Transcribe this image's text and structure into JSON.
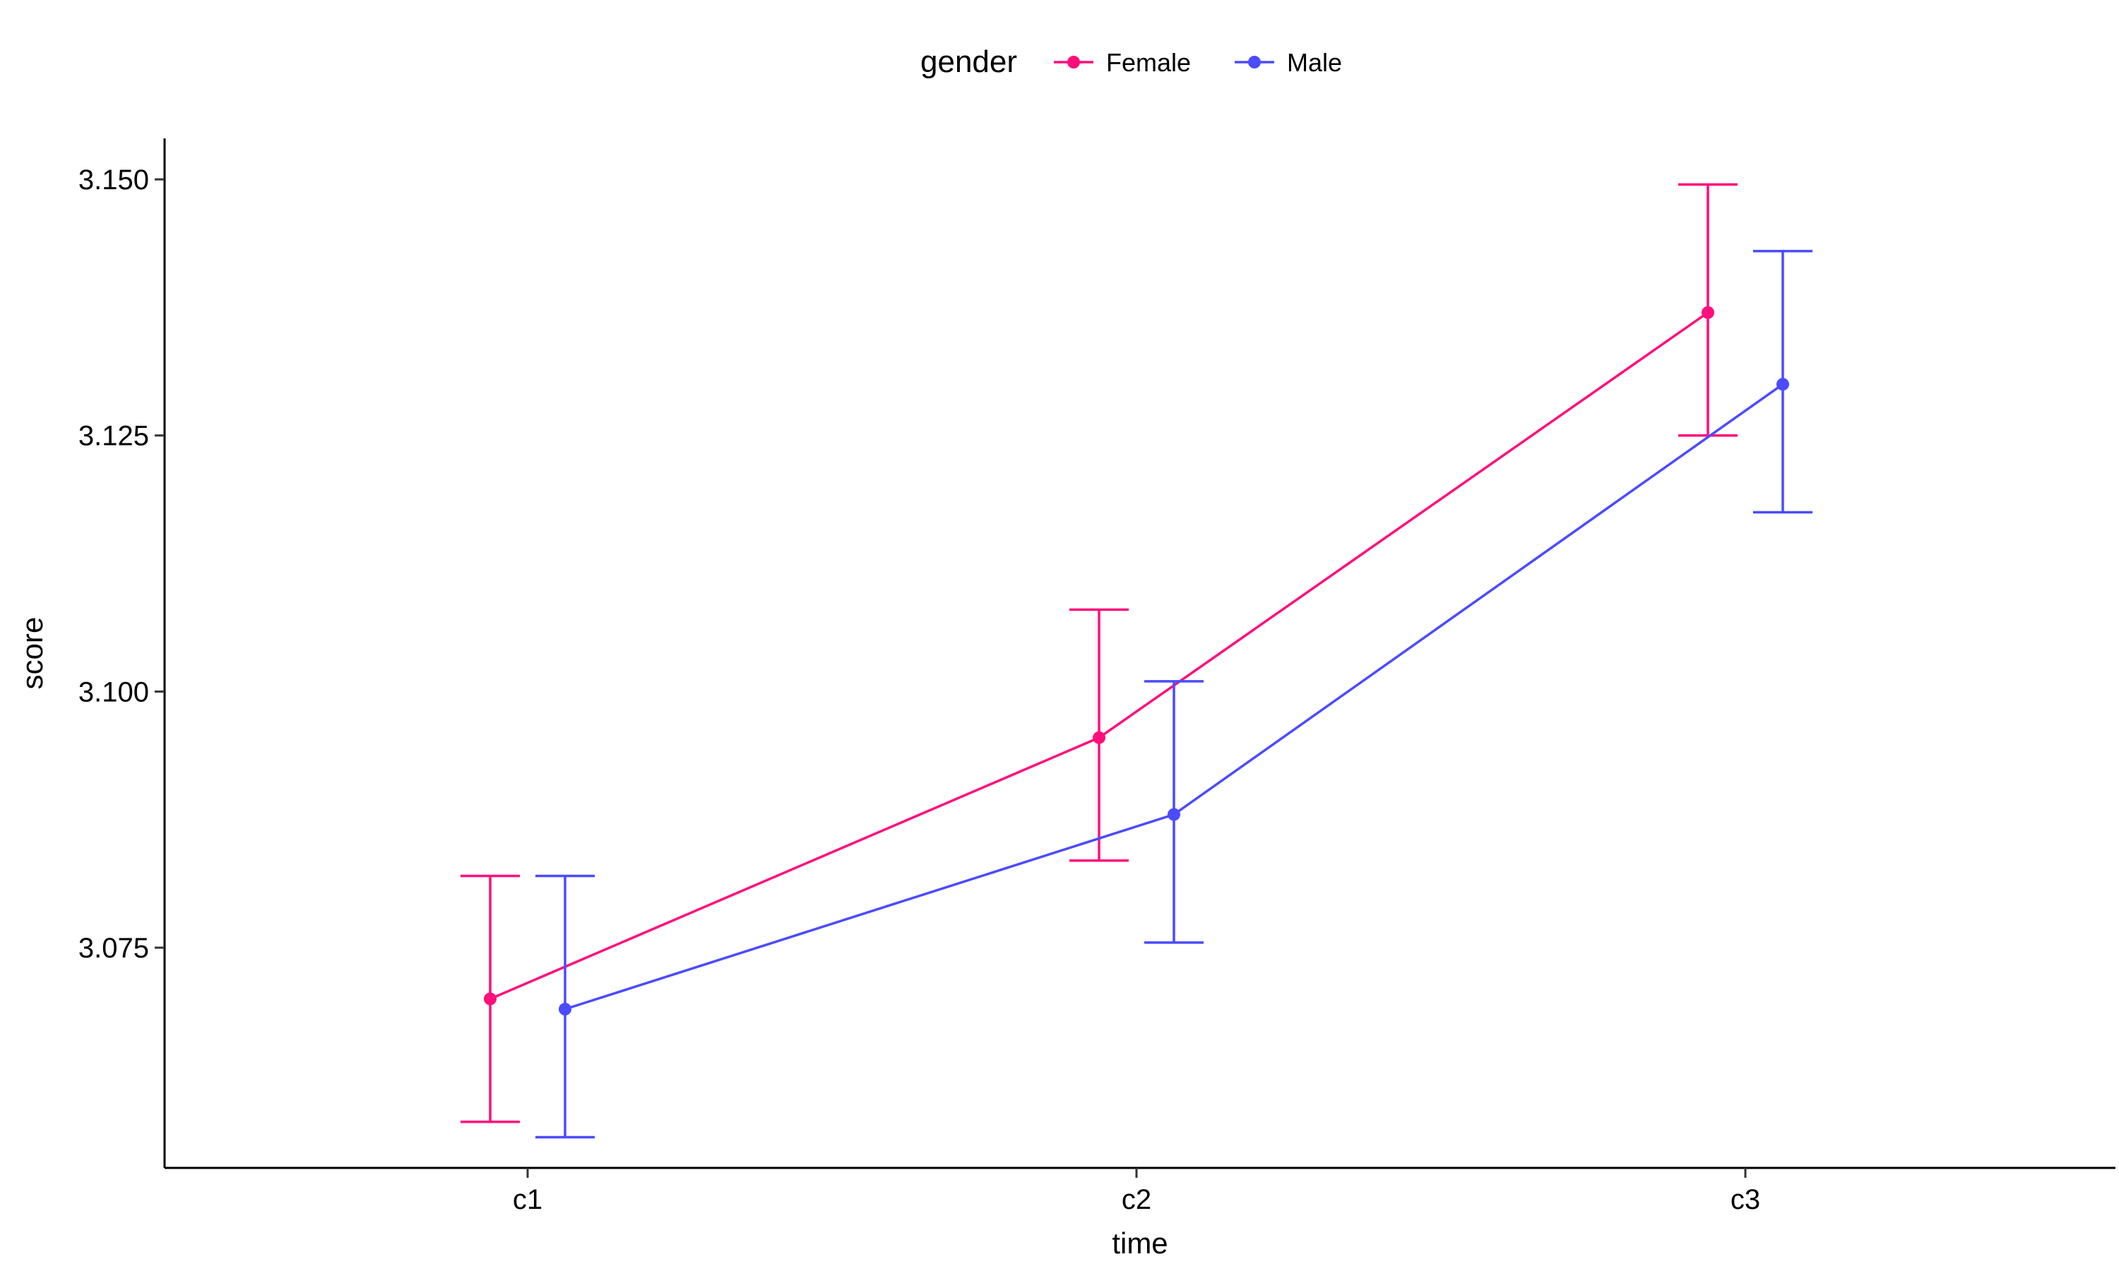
{
  "chart_data": {
    "type": "line",
    "xlabel": "time",
    "ylabel": "score",
    "categories": [
      "c1",
      "c2",
      "c3"
    ],
    "ylim": [
      3.0535,
      3.154
    ],
    "y_ticks": [
      3.075,
      3.1,
      3.125,
      3.15
    ],
    "y_tick_labels": [
      "3.075",
      "3.100",
      "3.125",
      "3.150"
    ],
    "grid": false,
    "error_bars": true,
    "legend": {
      "title": "gender",
      "position": "top"
    },
    "series": [
      {
        "name": "Female",
        "color": "#ff0f7b",
        "values": [
          3.07,
          3.0955,
          3.137
        ],
        "error_low": [
          3.058,
          3.0835,
          3.125
        ],
        "error_high": [
          3.082,
          3.108,
          3.1495
        ]
      },
      {
        "name": "Male",
        "color": "#4b4bff",
        "values": [
          3.069,
          3.088,
          3.13
        ],
        "error_low": [
          3.0565,
          3.0755,
          3.1175
        ],
        "error_high": [
          3.082,
          3.101,
          3.143
        ]
      }
    ]
  }
}
